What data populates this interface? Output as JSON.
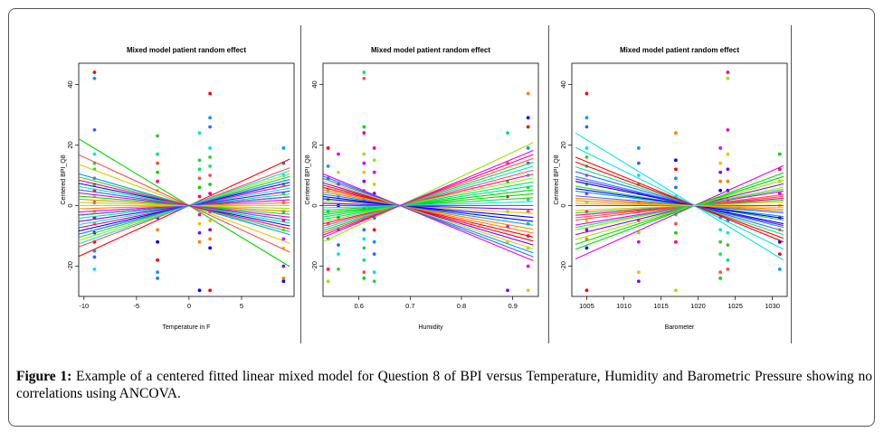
{
  "caption": {
    "label": "Figure 1:",
    "text": " Example of a centered fitted linear mixed model for Question 8 of BPI versus Temperature, Humidity and Barometric Pressure showing no correlations using ANCOVA."
  },
  "palette": [
    "#ff0000",
    "#ff8000",
    "#e6c800",
    "#99e600",
    "#00d900",
    "#00e673",
    "#00e6e6",
    "#0099ff",
    "#0000ff",
    "#8000ff",
    "#e600e6",
    "#ff0080",
    "#ff4d4d",
    "#33cc33",
    "#3366ff"
  ],
  "chart_data": [
    {
      "type": "scatter",
      "title": "Mixed model patient random effect",
      "xlabel": "Temperature in F",
      "ylabel": "Centered BPI_Q8",
      "xlim": [
        -10.5,
        10
      ],
      "ylim": [
        -30,
        47
      ],
      "xticks": [
        -10,
        -5,
        0,
        5
      ],
      "yticks": [
        -20,
        0,
        20,
        40
      ],
      "center": [
        0,
        0
      ],
      "line_end_x": [
        -10.5,
        9.6
      ],
      "x_groups": [
        -9,
        -3,
        1,
        2,
        9
      ],
      "points": [
        [
          -9,
          44
        ],
        [
          -9,
          42
        ],
        [
          -9,
          25
        ],
        [
          -9,
          17
        ],
        [
          -9,
          14
        ],
        [
          -9,
          12
        ],
        [
          -9,
          9
        ],
        [
          -9,
          7
        ],
        [
          -9,
          5
        ],
        [
          -9,
          3
        ],
        [
          -9,
          1
        ],
        [
          -9,
          -2
        ],
        [
          -9,
          -4
        ],
        [
          -9,
          -6
        ],
        [
          -9,
          -9
        ],
        [
          -9,
          -12
        ],
        [
          -9,
          -15
        ],
        [
          -9,
          -17
        ],
        [
          -9,
          -21
        ],
        [
          -3,
          23
        ],
        [
          -3,
          17
        ],
        [
          -3,
          14
        ],
        [
          -3,
          11
        ],
        [
          -3,
          8
        ],
        [
          -3,
          5
        ],
        [
          -3,
          2
        ],
        [
          -3,
          -1
        ],
        [
          -3,
          -4
        ],
        [
          -3,
          -8
        ],
        [
          -3,
          -12
        ],
        [
          -3,
          -18
        ],
        [
          -3,
          -22
        ],
        [
          -3,
          -24
        ],
        [
          1,
          24
        ],
        [
          1,
          15
        ],
        [
          1,
          12
        ],
        [
          1,
          9
        ],
        [
          1,
          6
        ],
        [
          1,
          3
        ],
        [
          1,
          0
        ],
        [
          1,
          -3
        ],
        [
          1,
          -6
        ],
        [
          1,
          -9
        ],
        [
          1,
          -12
        ],
        [
          1,
          -28
        ],
        [
          2,
          37
        ],
        [
          2,
          29
        ],
        [
          2,
          26
        ],
        [
          2,
          19
        ],
        [
          2,
          16
        ],
        [
          2,
          13
        ],
        [
          2,
          10
        ],
        [
          2,
          7
        ],
        [
          2,
          4
        ],
        [
          2,
          1
        ],
        [
          2,
          -2
        ],
        [
          2,
          -5
        ],
        [
          2,
          -8
        ],
        [
          2,
          -11
        ],
        [
          2,
          -14
        ],
        [
          2,
          -28
        ],
        [
          9,
          19
        ],
        [
          9,
          14
        ],
        [
          9,
          10
        ],
        [
          9,
          7
        ],
        [
          9,
          4
        ],
        [
          9,
          1
        ],
        [
          9,
          -2
        ],
        [
          9,
          -5
        ],
        [
          9,
          -8
        ],
        [
          9,
          -11
        ],
        [
          9,
          -14
        ],
        [
          9,
          -20
        ],
        [
          9,
          -24
        ],
        [
          9,
          -25
        ]
      ],
      "slopes": [
        1.6,
        -2.1,
        -0.7,
        1.3,
        -0.2,
        0.4,
        0.9,
        1.0,
        -1.3,
        0.6,
        0.2,
        -0.5,
        1.1,
        -1.0,
        0.7,
        0.3,
        -0.3,
        0.8,
        -1.6,
        0.1,
        -0.6,
        0.5,
        -0.9,
        0.0,
        1.2,
        -0.4,
        0.3,
        -0.1,
        0.9,
        -0.8
      ]
    },
    {
      "type": "scatter",
      "title": "Mixed model patient random effect",
      "xlabel": "Humidity",
      "ylabel": "Centered BPI_Q8",
      "xlim": [
        0.53,
        0.95
      ],
      "ylim": [
        -30,
        47
      ],
      "xticks": [
        0.6,
        0.7,
        0.8,
        0.9
      ],
      "yticks": [
        -20,
        0,
        20,
        40
      ],
      "center": [
        0.68,
        0
      ],
      "line_end_x": [
        0.53,
        0.94
      ],
      "x_groups": [
        0.54,
        0.56,
        0.61,
        0.63,
        0.89,
        0.93
      ],
      "points": [
        [
          0.54,
          19
        ],
        [
          0.54,
          13
        ],
        [
          0.54,
          9
        ],
        [
          0.54,
          5
        ],
        [
          0.54,
          2
        ],
        [
          0.54,
          -2
        ],
        [
          0.54,
          -6
        ],
        [
          0.54,
          -11
        ],
        [
          0.54,
          -21
        ],
        [
          0.54,
          -25
        ],
        [
          0.56,
          17
        ],
        [
          0.56,
          11
        ],
        [
          0.56,
          7
        ],
        [
          0.56,
          3
        ],
        [
          0.56,
          0
        ],
        [
          0.56,
          -4
        ],
        [
          0.56,
          -8
        ],
        [
          0.56,
          -13
        ],
        [
          0.56,
          -16
        ],
        [
          0.56,
          -21
        ],
        [
          0.61,
          44
        ],
        [
          0.61,
          42
        ],
        [
          0.61,
          26
        ],
        [
          0.61,
          24
        ],
        [
          0.61,
          17
        ],
        [
          0.61,
          14
        ],
        [
          0.61,
          11
        ],
        [
          0.61,
          8
        ],
        [
          0.61,
          5
        ],
        [
          0.61,
          2
        ],
        [
          0.61,
          -1
        ],
        [
          0.61,
          -4
        ],
        [
          0.61,
          -8
        ],
        [
          0.61,
          -11
        ],
        [
          0.61,
          -14
        ],
        [
          0.61,
          -18
        ],
        [
          0.61,
          -22
        ],
        [
          0.61,
          -24
        ],
        [
          0.63,
          19
        ],
        [
          0.63,
          15
        ],
        [
          0.63,
          11
        ],
        [
          0.63,
          7
        ],
        [
          0.63,
          4
        ],
        [
          0.63,
          0
        ],
        [
          0.63,
          -4
        ],
        [
          0.63,
          -8
        ],
        [
          0.63,
          -12
        ],
        [
          0.63,
          -16
        ],
        [
          0.63,
          -22
        ],
        [
          0.63,
          -25
        ],
        [
          0.89,
          24
        ],
        [
          0.89,
          14
        ],
        [
          0.89,
          8
        ],
        [
          0.89,
          3
        ],
        [
          0.89,
          -2
        ],
        [
          0.89,
          -7
        ],
        [
          0.89,
          -12
        ],
        [
          0.89,
          -28
        ],
        [
          0.93,
          37
        ],
        [
          0.93,
          29
        ],
        [
          0.93,
          26
        ],
        [
          0.93,
          19
        ],
        [
          0.93,
          14
        ],
        [
          0.93,
          10
        ],
        [
          0.93,
          6
        ],
        [
          0.93,
          2
        ],
        [
          0.93,
          -2
        ],
        [
          0.93,
          -6
        ],
        [
          0.93,
          -10
        ],
        [
          0.93,
          -14
        ],
        [
          0.93,
          -20
        ],
        [
          0.93,
          -28
        ]
      ],
      "slopes": [
        80,
        -60,
        40,
        -40,
        20,
        -20,
        60,
        -30,
        30,
        -50,
        10,
        -10,
        50,
        -70,
        0,
        35,
        -25,
        65,
        -45,
        15,
        -15,
        45,
        -35,
        25,
        -5,
        55,
        -55,
        5,
        70,
        -65
      ]
    },
    {
      "type": "scatter",
      "title": "Mixed model patient random effect",
      "xlabel": "Barometer",
      "ylabel": "Centered BPI_Q8",
      "xlim": [
        1003,
        1032
      ],
      "ylim": [
        -30,
        47
      ],
      "xticks": [
        1005,
        1010,
        1015,
        1020,
        1025,
        1030
      ],
      "yticks": [
        -20,
        0,
        20,
        40
      ],
      "center": [
        1019.5,
        0
      ],
      "line_end_x": [
        1003.5,
        1031.5
      ],
      "x_groups": [
        1005,
        1012,
        1017,
        1023,
        1024,
        1031
      ],
      "points": [
        [
          1005,
          37
        ],
        [
          1005,
          29
        ],
        [
          1005,
          26
        ],
        [
          1005,
          19
        ],
        [
          1005,
          16
        ],
        [
          1005,
          13
        ],
        [
          1005,
          10
        ],
        [
          1005,
          7
        ],
        [
          1005,
          4
        ],
        [
          1005,
          1
        ],
        [
          1005,
          -2
        ],
        [
          1005,
          -5
        ],
        [
          1005,
          -8
        ],
        [
          1005,
          -11
        ],
        [
          1005,
          -14
        ],
        [
          1005,
          -28
        ],
        [
          1012,
          19
        ],
        [
          1012,
          14
        ],
        [
          1012,
          10
        ],
        [
          1012,
          7
        ],
        [
          1012,
          4
        ],
        [
          1012,
          1
        ],
        [
          1012,
          -2
        ],
        [
          1012,
          -5
        ],
        [
          1012,
          -9
        ],
        [
          1012,
          -12
        ],
        [
          1012,
          -22
        ],
        [
          1012,
          -25
        ],
        [
          1017,
          24
        ],
        [
          1017,
          15
        ],
        [
          1017,
          12
        ],
        [
          1017,
          9
        ],
        [
          1017,
          6
        ],
        [
          1017,
          3
        ],
        [
          1017,
          0
        ],
        [
          1017,
          -3
        ],
        [
          1017,
          -6
        ],
        [
          1017,
          -9
        ],
        [
          1017,
          -12
        ],
        [
          1017,
          -28
        ],
        [
          1023,
          19
        ],
        [
          1023,
          14
        ],
        [
          1023,
          11
        ],
        [
          1023,
          8
        ],
        [
          1023,
          5
        ],
        [
          1023,
          2
        ],
        [
          1023,
          -1
        ],
        [
          1023,
          -4
        ],
        [
          1023,
          -8
        ],
        [
          1023,
          -12
        ],
        [
          1023,
          -16
        ],
        [
          1023,
          -22
        ],
        [
          1023,
          -24
        ],
        [
          1024,
          44
        ],
        [
          1024,
          42
        ],
        [
          1024,
          25
        ],
        [
          1024,
          17
        ],
        [
          1024,
          12
        ],
        [
          1024,
          8
        ],
        [
          1024,
          5
        ],
        [
          1024,
          2
        ],
        [
          1024,
          -2
        ],
        [
          1024,
          -5
        ],
        [
          1024,
          -9
        ],
        [
          1024,
          -13
        ],
        [
          1024,
          -18
        ],
        [
          1024,
          -21
        ],
        [
          1031,
          17
        ],
        [
          1031,
          12
        ],
        [
          1031,
          8
        ],
        [
          1031,
          4
        ],
        [
          1031,
          0
        ],
        [
          1031,
          -4
        ],
        [
          1031,
          -8
        ],
        [
          1031,
          -12
        ],
        [
          1031,
          -16
        ],
        [
          1031,
          -21
        ]
      ],
      "slopes": [
        -1.5,
        1.1,
        -0.7,
        0.5,
        -0.3,
        0.2,
        -1.0,
        0.8,
        -0.5,
        0.3,
        -0.1,
        -0.8,
        0.6,
        -0.4,
        0.1,
        -1.2,
        0.4,
        -0.2,
        0.7,
        -0.6,
        0.0,
        -0.9,
        0.9,
        -0.35,
        0.25,
        -0.15,
        0.45,
        -0.55,
        0.15,
        -0.05
      ]
    }
  ]
}
